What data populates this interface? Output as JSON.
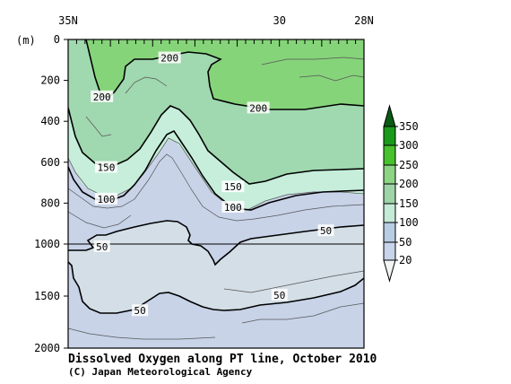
{
  "chart_data": {
    "type": "contour",
    "title": "Dissolved Oxygen along PT line, October 2010",
    "credit": "(C) Japan Meteorological Agency",
    "y_unit": "(m)",
    "x_ticks": [
      "35N",
      "30",
      "28N"
    ],
    "x_domain_lat": [
      35,
      28
    ],
    "y_ticks": [
      0,
      200,
      400,
      600,
      800,
      1000,
      1500,
      2000
    ],
    "ylim": [
      0,
      2000
    ],
    "y_scale": "piecewise-linear (0-1000 m expanded, 1000-2000 m compressed)",
    "y_reference_line": 1000,
    "contour_levels": [
      20,
      50,
      100,
      150,
      200,
      250,
      300,
      350
    ],
    "labeled_contours": [
      {
        "value": "200",
        "approx_lat": 32.6,
        "approx_depth": 90
      },
      {
        "value": "200",
        "approx_lat": 34.2,
        "approx_depth": 280
      },
      {
        "value": "200",
        "approx_lat": 30.5,
        "approx_depth": 335
      },
      {
        "value": "150",
        "approx_lat": 34.1,
        "approx_depth": 625
      },
      {
        "value": "150",
        "approx_lat": 31.1,
        "approx_depth": 720
      },
      {
        "value": "100",
        "approx_lat": 34.1,
        "approx_depth": 780
      },
      {
        "value": "100",
        "approx_lat": 31.1,
        "approx_depth": 820
      },
      {
        "value": "50",
        "approx_lat": 28.9,
        "approx_depth": 935
      },
      {
        "value": "50",
        "approx_lat": 34.2,
        "approx_depth": 1025
      },
      {
        "value": "50",
        "approx_lat": 30.0,
        "approx_depth": 1490
      },
      {
        "value": "50",
        "approx_lat": 33.3,
        "approx_depth": 1640
      }
    ],
    "colorbar": {
      "labels": [
        "20",
        "50",
        "100",
        "150",
        "200",
        "250",
        "300",
        "350"
      ],
      "colors": [
        "#f2f4f6",
        "#c9d4ea",
        "#b9cde2",
        "#c5ead8",
        "#9fd4a8",
        "#8ed485",
        "#47c22c",
        "#1a9a1a",
        "#0a5a14"
      ]
    },
    "fill_colors": {
      "deep_20_50": "#c8d3e8",
      "band_50_100": "#c8d3e8",
      "core_below_50": "#d3dee6",
      "band_100_150": "#c6eedb",
      "band_150_200": "#a0d8b0",
      "above_200": "#86d47a"
    }
  }
}
